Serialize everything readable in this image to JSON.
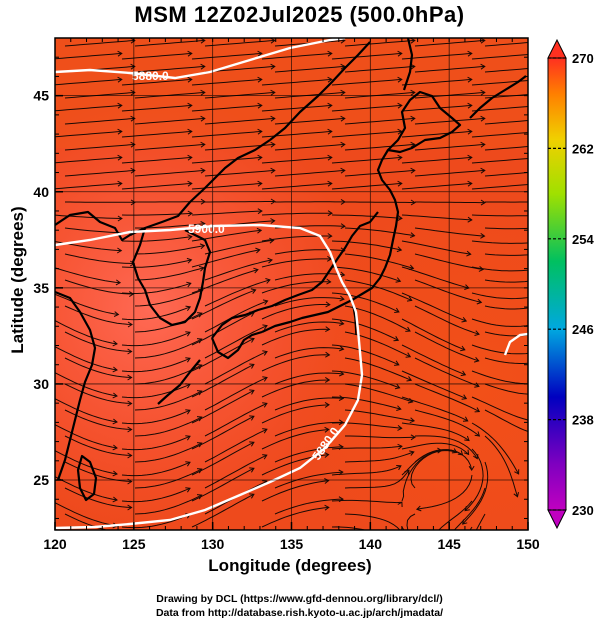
{
  "title": "MSM 12Z02Jul2025 (500.0hPa)",
  "x_axis": {
    "label": "Longitude (degrees)",
    "ticks": [
      "120",
      "125",
      "130",
      "135",
      "140",
      "145",
      "150"
    ],
    "range": [
      120,
      150
    ]
  },
  "y_axis": {
    "label": "Latitude  (degrees)",
    "ticks": [
      "25",
      "30",
      "35",
      "40",
      "45"
    ],
    "range": [
      22.4,
      48
    ]
  },
  "colorbar": {
    "ticks": [
      "230",
      "238",
      "246",
      "254",
      "262",
      "270"
    ],
    "range": [
      230,
      270
    ]
  },
  "contours": [
    {
      "label": "5880.0"
    },
    {
      "label": "5900.0"
    },
    {
      "label": "5880.0"
    }
  ],
  "credits": {
    "line1": "Drawing by DCL (https://www.gfd-dennou.org/library/dcl/)",
    "line2": "Data from http://database.rish.kyoto-u.ac.jp/arch/jmadata/"
  },
  "colors": {
    "field_warm": "#e8401a",
    "field_cool": "#ff5540",
    "coast": "#000000",
    "contour": "#ffffff"
  }
}
